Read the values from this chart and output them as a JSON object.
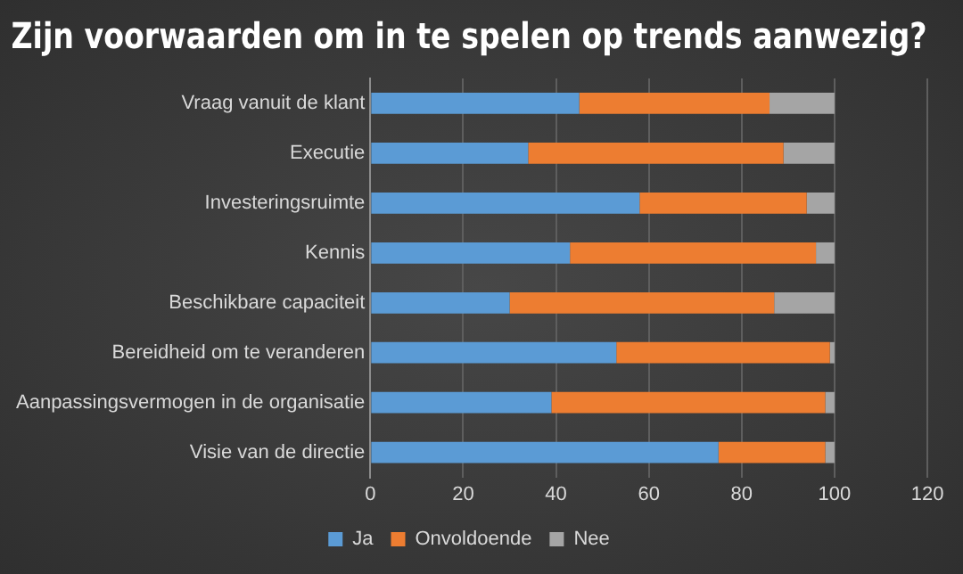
{
  "chart_data": {
    "type": "bar",
    "orientation": "horizontal",
    "stacked": true,
    "title": "Zijn voorwaarden om in te spelen op trends aanwezig?",
    "categories": [
      "Vraag vanuit de klant",
      "Executie",
      "Investeringsruimte",
      "Kennis",
      "Beschikbare capaciteit",
      "Bereidheid om te veranderen",
      "Aanpassingsvermogen in de organisatie",
      "Visie van de directie"
    ],
    "series": [
      {
        "name": "Ja",
        "color": "#5b9bd5",
        "values": [
          45,
          34,
          58,
          43,
          30,
          53,
          39,
          75
        ]
      },
      {
        "name": "Onvoldoende",
        "color": "#ed7d31",
        "values": [
          41,
          55,
          36,
          53,
          57,
          46,
          59,
          23
        ]
      },
      {
        "name": "Nee",
        "color": "#a5a5a5",
        "values": [
          14,
          11,
          6,
          4,
          13,
          1,
          2,
          2
        ]
      }
    ],
    "xlim": [
      0,
      120
    ],
    "xticks": [
      0,
      20,
      40,
      60,
      80,
      100,
      120
    ],
    "grid": "x",
    "legend": "bottom"
  }
}
